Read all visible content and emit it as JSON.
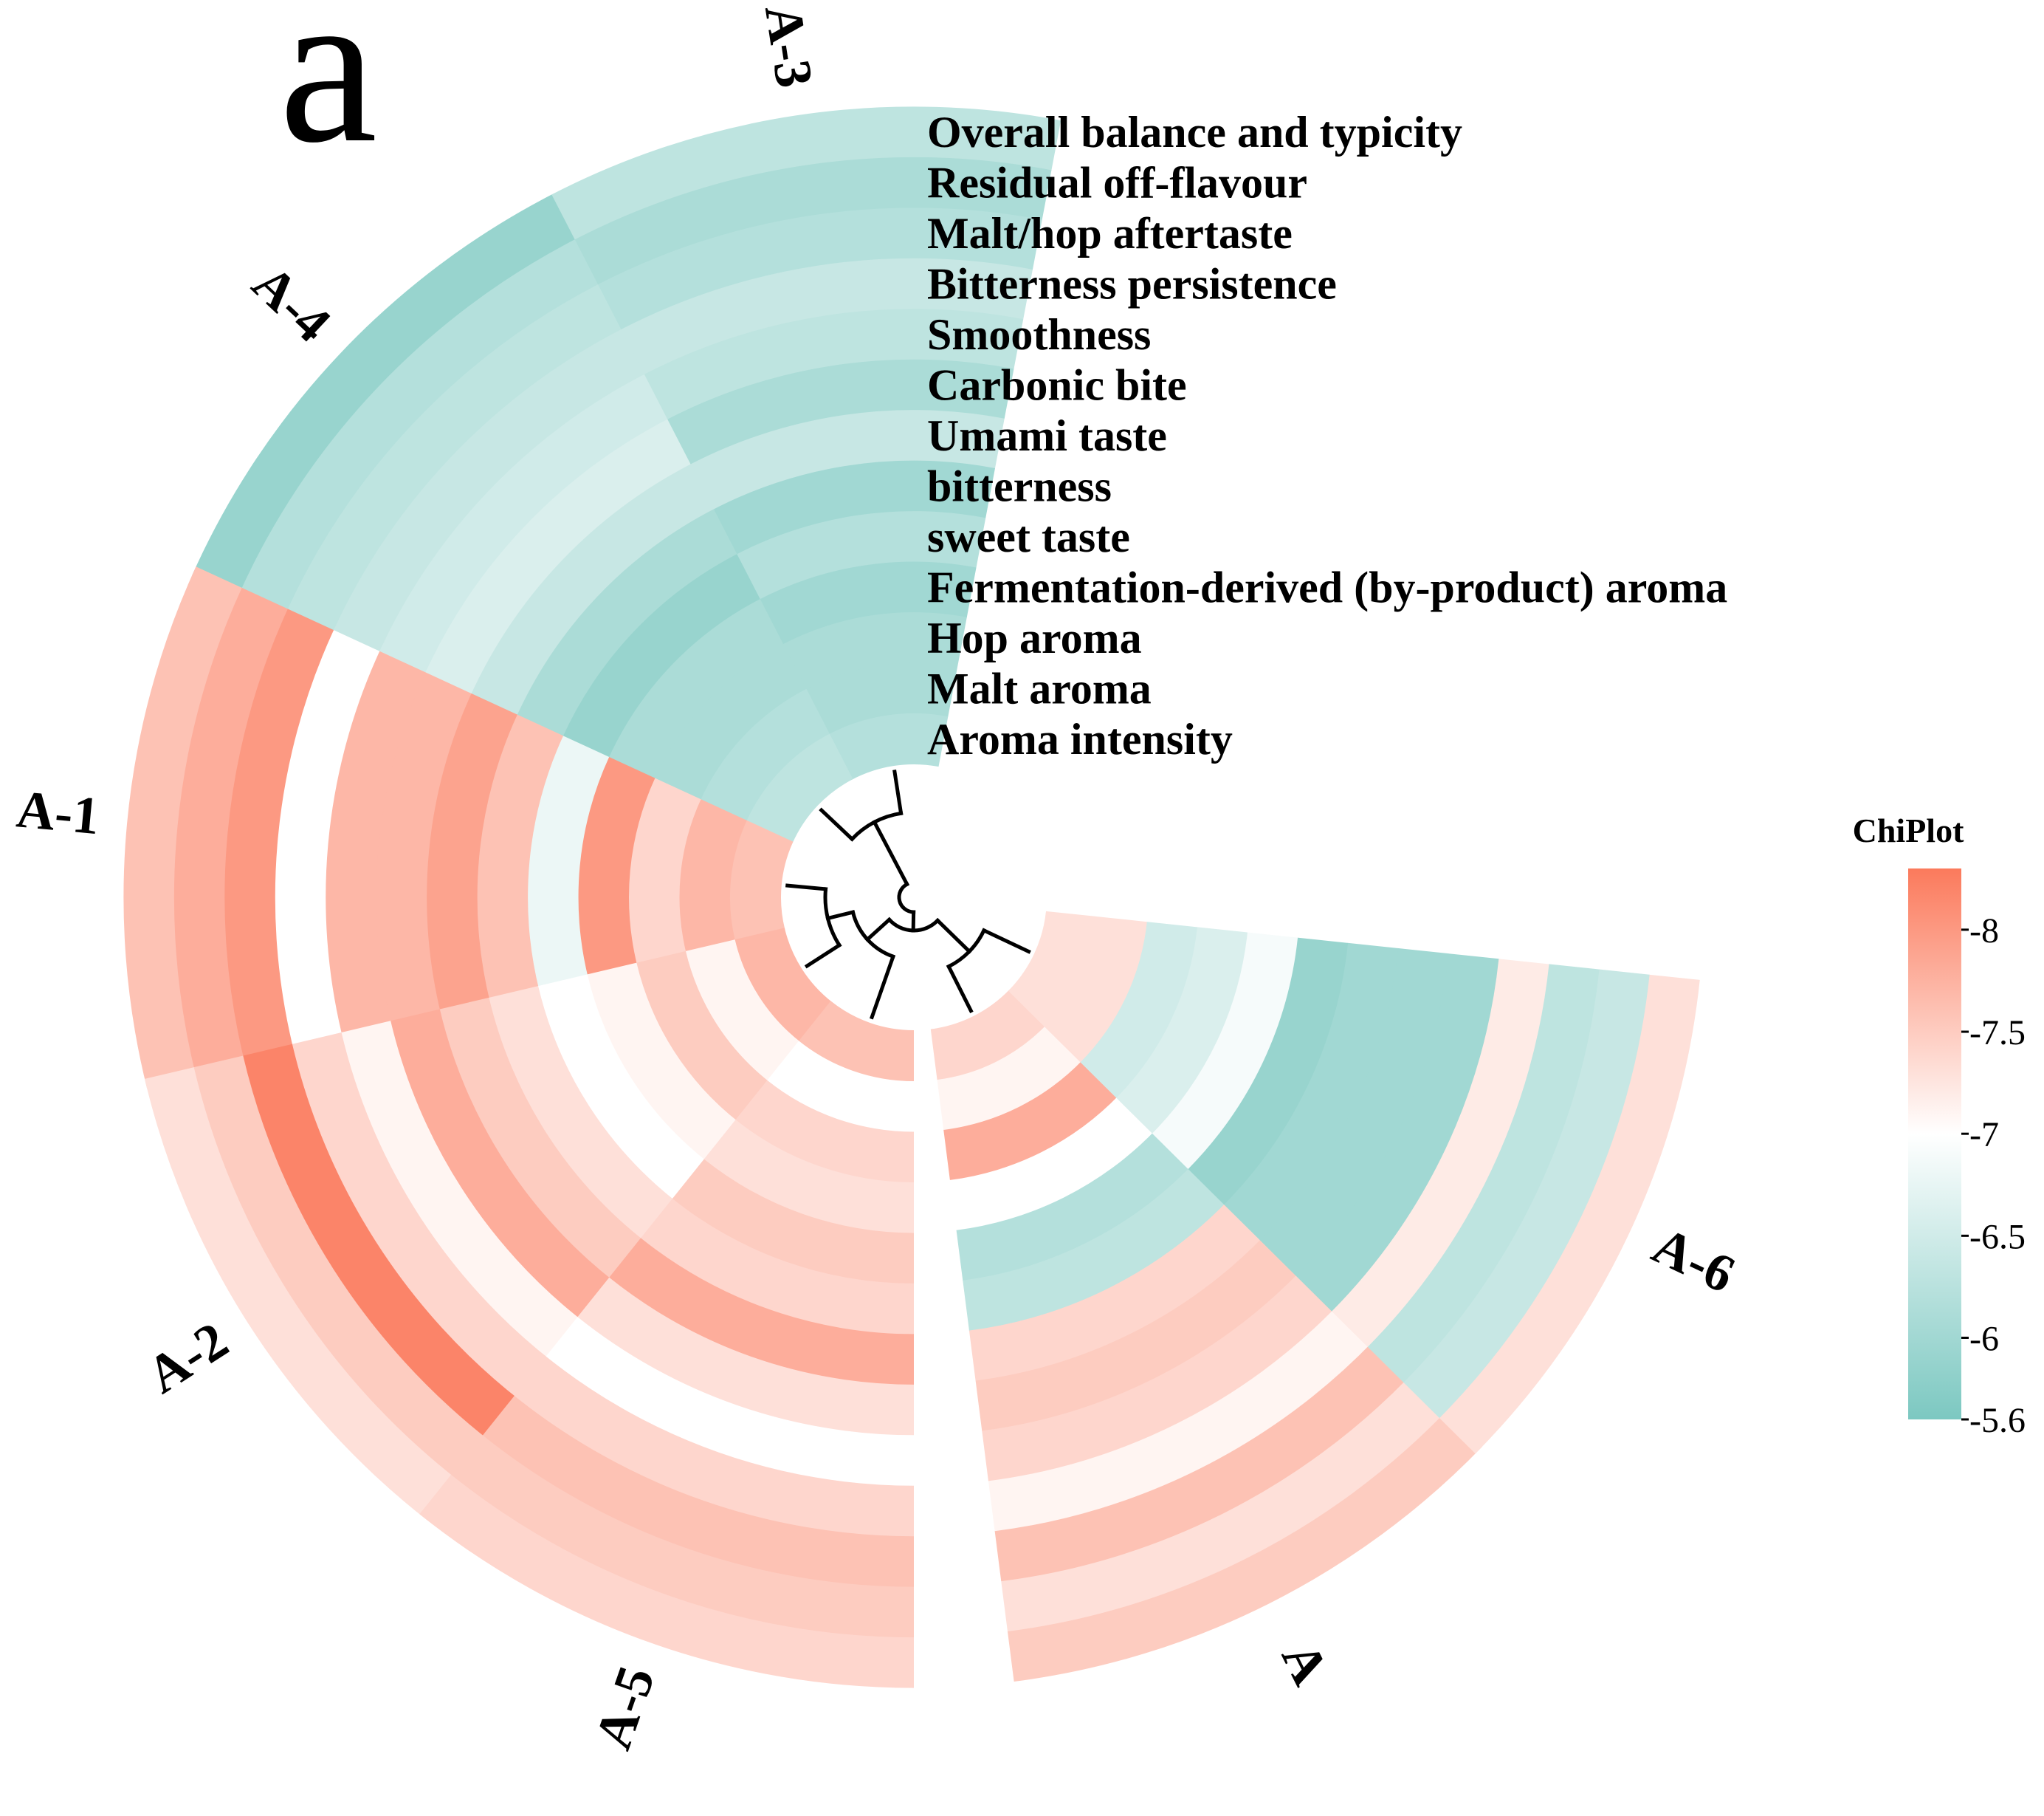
{
  "panel_label": "a",
  "chart_data": {
    "type": "heatmap",
    "layout": "circular",
    "rows": [
      "Overall balance and typicity",
      "Residual off-flavour",
      "Malt/hop aftertaste",
      "Bitterness persistence",
      "Smoothness",
      "Carbonic bite",
      "Umami taste",
      "bitterness",
      "sweet taste",
      "Fermentation-derived (by-product) aroma",
      "Hop aroma",
      "Malt aroma",
      "Aroma intensity"
    ],
    "columns": [
      "A-3",
      "A-4",
      "A-1",
      "A-2",
      "A-5",
      "A",
      "A-6"
    ],
    "values": [
      [
        6.3,
        5.9,
        7.6,
        7.3,
        7.4,
        7.5,
        7.3
      ],
      [
        6.1,
        6.2,
        7.8,
        7.5,
        7.5,
        7.3,
        6.4
      ],
      [
        6.2,
        6.3,
        8.0,
        8.2,
        7.6,
        7.6,
        6.3
      ],
      [
        6.4,
        6.4,
        7.0,
        7.4,
        7.4,
        7.1,
        7.2
      ],
      [
        6.3,
        6.5,
        7.7,
        7.1,
        7.0,
        7.4,
        6.0
      ],
      [
        6.1,
        6.6,
        7.7,
        7.8,
        7.3,
        7.5,
        6.0
      ],
      [
        6.4,
        6.4,
        7.9,
        7.5,
        7.8,
        7.4,
        6.0
      ],
      [
        6.0,
        6.1,
        7.6,
        7.3,
        7.4,
        6.3,
        5.9
      ],
      [
        6.2,
        5.9,
        6.8,
        7.0,
        7.5,
        6.2,
        6.9
      ],
      [
        6.0,
        6.1,
        8.0,
        7.1,
        7.3,
        7.0,
        6.6
      ],
      [
        6.1,
        6.1,
        7.4,
        7.5,
        7.4,
        7.8,
        6.5
      ],
      [
        6.1,
        6.2,
        7.7,
        7.1,
        7.0,
        7.1,
        7.3
      ],
      [
        6.2,
        6.3,
        7.6,
        7.7,
        7.6,
        7.4,
        7.3
      ]
    ],
    "color_scale": {
      "title": "ChiPlot",
      "min": 5.6,
      "max": 8.3,
      "low_color": "#7cc8c1",
      "mid_color": "#ffffff",
      "mid_value": 7,
      "high_color": "#fb7a5c",
      "ticks": [
        "8",
        "7.5",
        "7",
        "6.5",
        "6",
        "5.6"
      ]
    },
    "dendrogram": "sample clustering tree in chart center"
  }
}
